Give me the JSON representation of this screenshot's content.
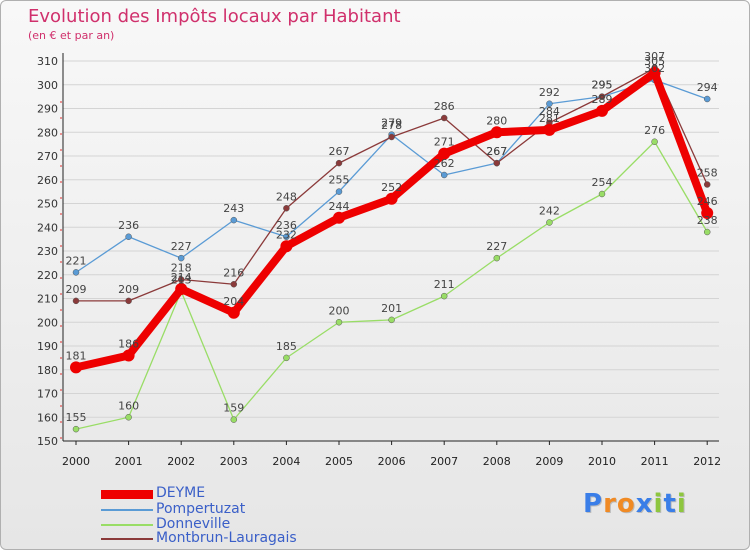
{
  "title": "Evolution des Impôts locaux par Habitant",
  "subtitle": "(en € et par an)",
  "logo": {
    "text": "Proxiti",
    "letter_colors": [
      "#3a7ee8",
      "#f08a24",
      "#f08a24",
      "#3a7ee8",
      "#8ec63f",
      "#3a7ee8",
      "#8ec63f"
    ]
  },
  "chart_data": {
    "type": "line",
    "title": "Evolution des Impôts locaux par Habitant",
    "subtitle": "(en € et par an)",
    "xlabel": "",
    "ylabel": "",
    "categories": [
      "2000",
      "2001",
      "2002",
      "2003",
      "2004",
      "2005",
      "2006",
      "2007",
      "2008",
      "2009",
      "2010",
      "2011",
      "2012"
    ],
    "ylim": [
      150,
      310
    ],
    "yticks": [
      150,
      160,
      170,
      180,
      190,
      200,
      210,
      220,
      230,
      240,
      250,
      260,
      270,
      280,
      290,
      300,
      310
    ],
    "grid": "horizontal",
    "legend_position": "bottom-left",
    "series": [
      {
        "name": "DEYME",
        "color": "#ee0000",
        "emphasis": "thick",
        "values": [
          181,
          186,
          214,
          204,
          232,
          244,
          252,
          271,
          280,
          281,
          289,
          305,
          246
        ],
        "labels": [
          "181",
          "186",
          "214",
          "204",
          "232",
          "244",
          "252",
          "271",
          "280",
          "281",
          "289",
          "305",
          "246"
        ]
      },
      {
        "name": "Pompertuzat",
        "color": "#5a9bd5",
        "emphasis": "thin",
        "values": [
          221,
          236,
          227,
          243,
          236,
          255,
          279,
          262,
          267,
          292,
          295,
          302,
          294
        ],
        "labels": [
          "221",
          "236",
          "227",
          "243",
          "236",
          "255",
          "279",
          "262",
          "267",
          "292",
          "295",
          "302",
          "294"
        ]
      },
      {
        "name": "Donneville",
        "color": "#99dd66",
        "emphasis": "thin",
        "values": [
          155,
          160,
          213,
          159,
          185,
          200,
          201,
          211,
          227,
          242,
          254,
          276,
          238
        ],
        "labels": [
          "155",
          "160",
          "213",
          "159",
          "185",
          "200",
          "201",
          "211",
          "227",
          "242",
          "254",
          "276",
          "238"
        ]
      },
      {
        "name": "Montbrun-Lauragais",
        "color": "#8b3a3a",
        "emphasis": "thin",
        "values": [
          209,
          209,
          218,
          216,
          248,
          267,
          278,
          286,
          267,
          284,
          295,
          307,
          258
        ],
        "labels": [
          "209",
          "209",
          "218",
          "216",
          "248",
          "267",
          "278",
          "286",
          "267",
          "284",
          "295",
          "307",
          "258"
        ]
      }
    ]
  }
}
